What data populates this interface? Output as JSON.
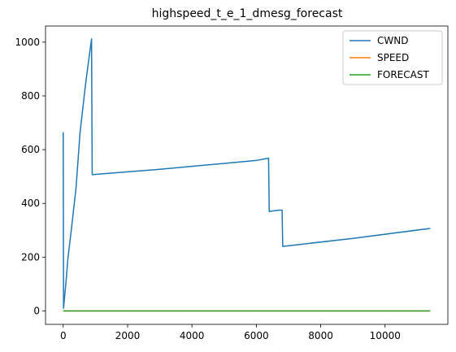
{
  "chart_data": {
    "type": "line",
    "title": "highspeed_t_e_1_dmesg_forecast",
    "xlabel": "",
    "ylabel": "",
    "xlim": [
      -550,
      11950
    ],
    "ylim": [
      -50,
      1060
    ],
    "xticks": [
      0,
      2000,
      4000,
      6000,
      8000,
      10000
    ],
    "yticks": [
      0,
      200,
      400,
      600,
      800,
      1000
    ],
    "grid": false,
    "legend": "top-right",
    "series": [
      {
        "name": "CWND",
        "color": "#1f77b4",
        "x": [
          0,
          10,
          80,
          150,
          250,
          400,
          520,
          700,
          880,
          900,
          3000,
          6000,
          6380,
          6400,
          6700,
          6800,
          6820,
          9000,
          11400
        ],
        "y": [
          665,
          10,
          100,
          200,
          300,
          460,
          660,
          850,
          1012,
          507,
          527,
          560,
          568,
          370,
          375,
          375,
          240,
          270,
          307
        ]
      },
      {
        "name": "SPEED",
        "color": "#ff7f0e",
        "x": [
          0,
          11400
        ],
        "y": [
          0,
          0
        ]
      },
      {
        "name": "FORECAST",
        "color": "#2ca02c",
        "x": [
          0,
          11400
        ],
        "y": [
          0,
          0
        ]
      }
    ]
  }
}
